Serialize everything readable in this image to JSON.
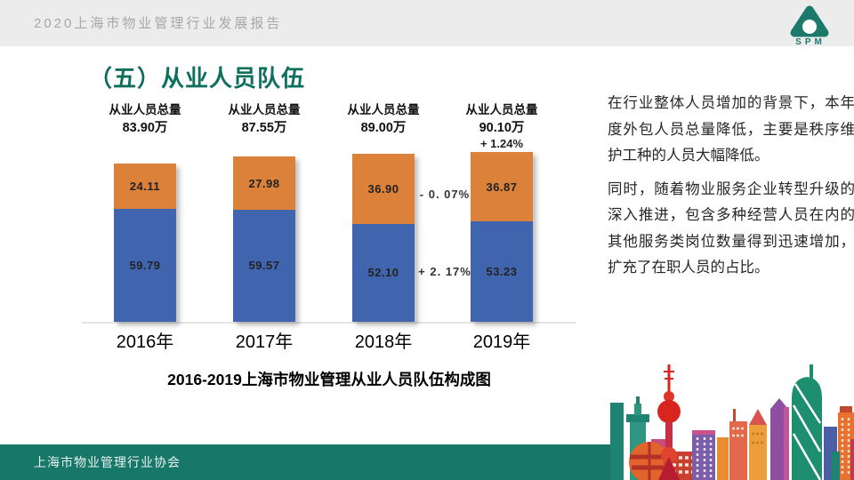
{
  "theme": {
    "accent_green": "#0E6F5C",
    "footer_green": "#17786A",
    "header_bg": "#ECECEC",
    "bar_blue": "#4065AE",
    "bar_orange": "#DC8139"
  },
  "header": {
    "report_title": "2020上海市物业管理行业发展报告",
    "logo_text": "SPM"
  },
  "section_title": "（五）从业人员队伍",
  "chart_data": {
    "type": "bar",
    "stacked": true,
    "title": "2016-2019上海市物业管理从业人员队伍构成图",
    "unit": "万",
    "legend": "none",
    "grid": "off",
    "categories": [
      "2016年",
      "2017年",
      "2018年",
      "2019年"
    ],
    "series": [
      {
        "id": "blue-bottom-segment",
        "color": "#4065AE",
        "values": [
          59.79,
          59.57,
          52.1,
          53.23
        ]
      },
      {
        "id": "orange-top-segment",
        "color": "#DC8139",
        "values": [
          24.11,
          27.98,
          36.9,
          36.87
        ]
      }
    ],
    "totals": [
      {
        "label": "从业人员总量",
        "value": "83.90万"
      },
      {
        "label": "从业人员总量",
        "value": "87.55万"
      },
      {
        "label": "从业人员总量",
        "value": "89.00万"
      },
      {
        "label": "从业人员总量",
        "value": "90.10万",
        "delta": "+ 1.24%"
      }
    ],
    "annotations": [
      {
        "text": "- 0. 07%"
      },
      {
        "text": "+ 2. 17%"
      }
    ]
  },
  "commentary": {
    "paragraphs": [
      "在行业整体人员增加的背景下，本年度外包人员总量降低，主要是秩序维护工种的人员大幅降低。",
      "同时，随着物业服务企业转型升级的深入推进，包含多种经营人员在内的其他服务类岗位数量得到迅速增加，扩充了在职人员的占比。"
    ]
  },
  "footer": {
    "org_name": "上海市物业管理行业协会"
  }
}
